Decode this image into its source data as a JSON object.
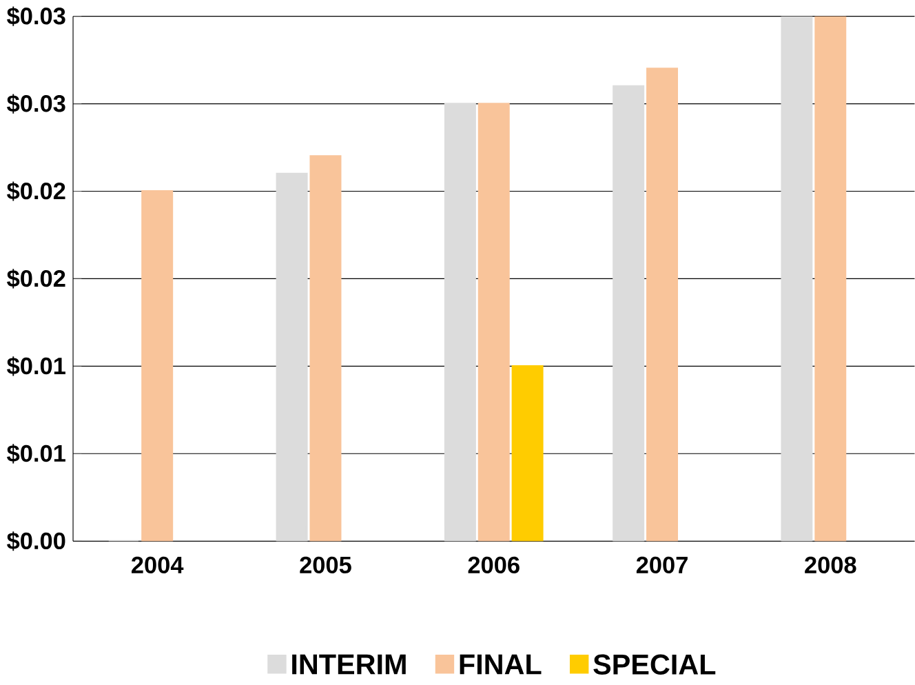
{
  "chart_data": {
    "type": "bar",
    "categories": [
      "2004",
      "2005",
      "2006",
      "2007",
      "2008"
    ],
    "series": [
      {
        "name": "INTERIM",
        "color": "#dcdcdc",
        "values": [
          0,
          0.021,
          0.025,
          0.026,
          0.03
        ]
      },
      {
        "name": "FINAL",
        "color": "#f9c49a",
        "values": [
          0.02,
          0.022,
          0.025,
          0.027,
          0.03
        ]
      },
      {
        "name": "SPECIAL",
        "color": "#ffcc00",
        "values": [
          null,
          null,
          0.01,
          null,
          null
        ]
      }
    ],
    "ylim": [
      0,
      0.03
    ],
    "yticks": [
      {
        "value": 0,
        "label": "$0.00"
      },
      {
        "value": 0.005,
        "label": "$0.01"
      },
      {
        "value": 0.01,
        "label": "$0.01"
      },
      {
        "value": 0.015,
        "label": "$0.02"
      },
      {
        "value": 0.02,
        "label": "$0.02"
      },
      {
        "value": 0.025,
        "label": "$0.03"
      },
      {
        "value": 0.03,
        "label": "$0.03"
      }
    ],
    "grid": "y",
    "legend": "bottom"
  }
}
